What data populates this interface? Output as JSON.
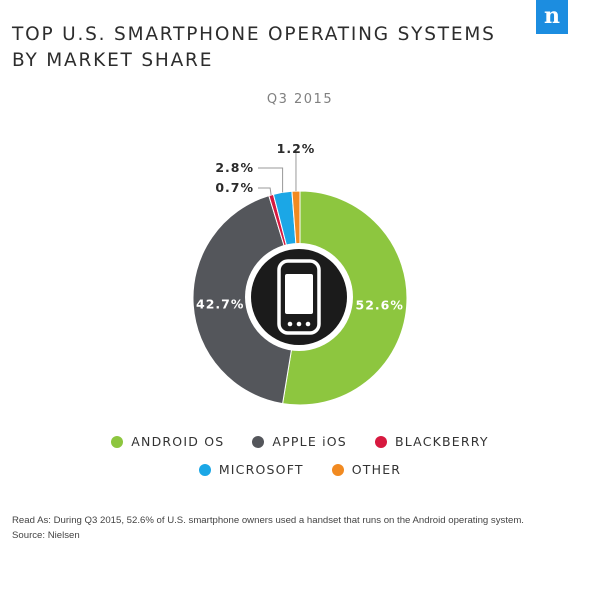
{
  "header": {
    "title_line1": "TOP U.S. SMARTPHONE OPERATING SYSTEMS",
    "title_line2": "BY MARKET SHARE",
    "logo_letter": "n"
  },
  "chart_data": {
    "type": "pie",
    "subtitle": "Q3 2015",
    "unit": "%",
    "slices": [
      {
        "name": "ANDROID OS",
        "value": 52.6,
        "label": "52.6%",
        "color": "#8dc63f"
      },
      {
        "name": "APPLE iOS",
        "value": 42.7,
        "label": "42.7%",
        "color": "#54565b"
      },
      {
        "name": "BLACKBERRY",
        "value": 0.7,
        "label": "0.7%",
        "color": "#d7193f"
      },
      {
        "name": "MICROSOFT",
        "value": 2.8,
        "label": "2.8%",
        "color": "#1ba7e6"
      },
      {
        "name": "OTHER",
        "value": 1.2,
        "label": "1.2%",
        "color": "#f18a21"
      }
    ],
    "center_icon": "smartphone-icon"
  },
  "legend": {
    "row1": [
      {
        "label": "ANDROID OS",
        "color": "#8dc63f"
      },
      {
        "label": "APPLE iOS",
        "color": "#54565b"
      },
      {
        "label": "BLACKBERRY",
        "color": "#d7193f"
      }
    ],
    "row2": [
      {
        "label": "MICROSOFT",
        "color": "#1ba7e6"
      },
      {
        "label": "OTHER",
        "color": "#f18a21"
      }
    ]
  },
  "footer": {
    "read_as": "Read As: During Q3 2015, 52.6% of U.S. smartphone owners used a handset that runs on the Android operating system.",
    "source": "Source: Nielsen"
  }
}
